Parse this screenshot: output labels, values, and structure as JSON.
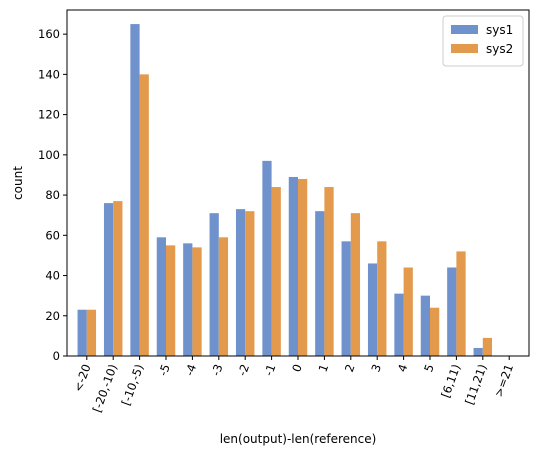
{
  "chart_data": {
    "type": "bar",
    "xlabel": "len(output)-len(reference)",
    "ylabel": "count",
    "ylim": [
      0,
      172
    ],
    "yticks": [
      0,
      20,
      40,
      60,
      80,
      100,
      120,
      140,
      160
    ],
    "categories": [
      "<-20",
      "[-20,-10)",
      "[-10,-5)",
      "-5",
      "-4",
      "-3",
      "-2",
      "-1",
      "0",
      "1",
      "2",
      "3",
      "4",
      "5",
      "[6,11)",
      "[11,21)",
      ">=21"
    ],
    "series": [
      {
        "name": "sys1",
        "color": "#6f91cc",
        "values": [
          23,
          76,
          165,
          59,
          56,
          71,
          73,
          97,
          89,
          72,
          57,
          46,
          31,
          30,
          44,
          4,
          0
        ]
      },
      {
        "name": "sys2",
        "color": "#e39a4c",
        "values": [
          23,
          77,
          140,
          55,
          54,
          59,
          72,
          84,
          88,
          84,
          71,
          57,
          44,
          24,
          52,
          9,
          0
        ]
      }
    ],
    "legend_position": "top-right",
    "grid": false
  }
}
